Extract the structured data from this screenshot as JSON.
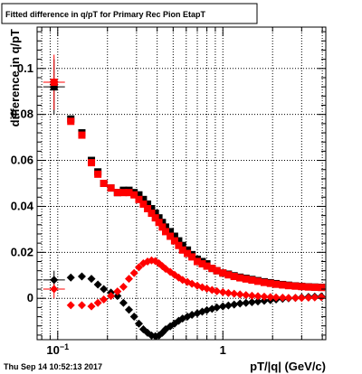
{
  "page": {
    "timestamp": "Thu Sep 14 10:52:13 2017"
  },
  "chart_data": {
    "type": "scatter",
    "title": "Fitted difference in q/pT for Primary Rec Pion EtapT",
    "xlabel": "pT/|q| (GeV/c)",
    "ylabel": "difference in q/pT",
    "xscale": "log",
    "xlim": [
      0.075,
      4.2
    ],
    "ylim": [
      -0.018,
      0.118
    ],
    "grid": true,
    "x_ticks": [
      {
        "label": "10",
        "sup": "−1",
        "value": 0.1
      },
      {
        "label": "1",
        "value": 1.0
      }
    ],
    "y_ticks": [
      {
        "label": "0",
        "value": 0
      },
      {
        "label": "0.02",
        "value": 0.02
      },
      {
        "label": "0.04",
        "value": 0.04
      },
      {
        "label": "0.06",
        "value": 0.06
      },
      {
        "label": "0.08",
        "value": 0.08
      },
      {
        "label": "0.1",
        "value": 0.1
      }
    ],
    "series": [
      {
        "color": "#000000",
        "marker": "square",
        "points": [
          [
            0.095,
            0.092
          ],
          [
            0.12,
            0.078
          ],
          [
            0.14,
            0.072
          ],
          [
            0.16,
            0.06
          ],
          [
            0.175,
            0.055
          ],
          [
            0.19,
            0.05
          ],
          [
            0.21,
            0.048
          ],
          [
            0.23,
            0.046
          ],
          [
            0.25,
            0.047
          ],
          [
            0.27,
            0.047
          ],
          [
            0.29,
            0.046
          ],
          [
            0.31,
            0.045
          ],
          [
            0.33,
            0.043
          ],
          [
            0.35,
            0.041
          ],
          [
            0.37,
            0.039
          ],
          [
            0.39,
            0.037
          ],
          [
            0.41,
            0.035
          ],
          [
            0.43,
            0.033
          ],
          [
            0.45,
            0.031
          ],
          [
            0.48,
            0.029
          ],
          [
            0.51,
            0.027
          ],
          [
            0.54,
            0.025
          ],
          [
            0.57,
            0.023
          ],
          [
            0.61,
            0.021
          ],
          [
            0.65,
            0.019
          ],
          [
            0.7,
            0.017
          ],
          [
            0.75,
            0.016
          ],
          [
            0.8,
            0.015
          ],
          [
            0.86,
            0.013
          ],
          [
            0.92,
            0.012
          ],
          [
            1.0,
            0.011
          ],
          [
            1.08,
            0.0105
          ],
          [
            1.17,
            0.0098
          ],
          [
            1.27,
            0.0092
          ],
          [
            1.38,
            0.0087
          ],
          [
            1.5,
            0.0082
          ],
          [
            1.63,
            0.0077
          ],
          [
            1.78,
            0.0072
          ],
          [
            1.94,
            0.0068
          ],
          [
            2.1,
            0.0064
          ],
          [
            2.3,
            0.006
          ],
          [
            2.5,
            0.0057
          ],
          [
            2.75,
            0.0054
          ],
          [
            3.0,
            0.0052
          ],
          [
            3.3,
            0.005
          ],
          [
            3.6,
            0.0049
          ],
          [
            3.95,
            0.0048
          ]
        ]
      },
      {
        "color": "#ff0000",
        "marker": "square",
        "points": [
          [
            0.095,
            0.094
          ],
          [
            0.12,
            0.077
          ],
          [
            0.14,
            0.071
          ],
          [
            0.16,
            0.059
          ],
          [
            0.175,
            0.054
          ],
          [
            0.19,
            0.05
          ],
          [
            0.21,
            0.048
          ],
          [
            0.23,
            0.046
          ],
          [
            0.25,
            0.046
          ],
          [
            0.27,
            0.046
          ],
          [
            0.29,
            0.045
          ],
          [
            0.31,
            0.043
          ],
          [
            0.33,
            0.041
          ],
          [
            0.35,
            0.039
          ],
          [
            0.37,
            0.037
          ],
          [
            0.39,
            0.035
          ],
          [
            0.41,
            0.033
          ],
          [
            0.43,
            0.031
          ],
          [
            0.45,
            0.029
          ],
          [
            0.48,
            0.027
          ],
          [
            0.51,
            0.025
          ],
          [
            0.54,
            0.023
          ],
          [
            0.57,
            0.021
          ],
          [
            0.61,
            0.0195
          ],
          [
            0.65,
            0.018
          ],
          [
            0.7,
            0.016
          ],
          [
            0.75,
            0.015
          ],
          [
            0.8,
            0.014
          ],
          [
            0.86,
            0.013
          ],
          [
            0.92,
            0.012
          ],
          [
            1.0,
            0.011
          ],
          [
            1.08,
            0.0102
          ],
          [
            1.17,
            0.0095
          ],
          [
            1.27,
            0.0089
          ],
          [
            1.38,
            0.0084
          ],
          [
            1.5,
            0.0079
          ],
          [
            1.63,
            0.0074
          ],
          [
            1.78,
            0.0069
          ],
          [
            1.94,
            0.0065
          ],
          [
            2.1,
            0.0061
          ],
          [
            2.3,
            0.0058
          ],
          [
            2.5,
            0.0055
          ],
          [
            2.75,
            0.0053
          ],
          [
            3.0,
            0.0051
          ],
          [
            3.3,
            0.0049
          ],
          [
            3.6,
            0.0048
          ],
          [
            3.95,
            0.0047
          ]
        ]
      },
      {
        "color": "#000000",
        "marker": "diamond",
        "points": [
          [
            0.095,
            0.008
          ],
          [
            0.12,
            0.009
          ],
          [
            0.14,
            0.0095
          ],
          [
            0.16,
            0.0085
          ],
          [
            0.175,
            0.006
          ],
          [
            0.19,
            0.004
          ],
          [
            0.21,
            0.0025
          ],
          [
            0.23,
            0.001
          ],
          [
            0.25,
            -0.002
          ],
          [
            0.27,
            -0.005
          ],
          [
            0.29,
            -0.008
          ],
          [
            0.31,
            -0.011
          ],
          [
            0.33,
            -0.0135
          ],
          [
            0.35,
            -0.015
          ],
          [
            0.37,
            -0.0162
          ],
          [
            0.39,
            -0.0165
          ],
          [
            0.41,
            -0.0162
          ],
          [
            0.43,
            -0.015
          ],
          [
            0.45,
            -0.0135
          ],
          [
            0.48,
            -0.0122
          ],
          [
            0.51,
            -0.011
          ],
          [
            0.54,
            -0.0098
          ],
          [
            0.57,
            -0.0088
          ],
          [
            0.61,
            -0.008
          ],
          [
            0.65,
            -0.0072
          ],
          [
            0.7,
            -0.0065
          ],
          [
            0.75,
            -0.0058
          ],
          [
            0.8,
            -0.0052
          ],
          [
            0.86,
            -0.0046
          ],
          [
            0.92,
            -0.004
          ],
          [
            1.0,
            -0.0035
          ],
          [
            1.08,
            -0.0031
          ],
          [
            1.17,
            -0.0027
          ],
          [
            1.27,
            -0.0023
          ],
          [
            1.38,
            -0.002
          ],
          [
            1.5,
            -0.0017
          ],
          [
            1.63,
            -0.0014
          ],
          [
            1.78,
            -0.0011
          ],
          [
            1.94,
            -0.0008
          ],
          [
            2.1,
            -0.0005
          ],
          [
            2.3,
            -0.0002
          ],
          [
            2.5,
            0.0
          ],
          [
            2.75,
            0.0002
          ],
          [
            3.0,
            0.0004
          ],
          [
            3.3,
            0.0006
          ],
          [
            3.6,
            0.0007
          ],
          [
            3.95,
            0.0008
          ]
        ]
      },
      {
        "color": "#ff0000",
        "marker": "diamond",
        "points": [
          [
            0.095,
            0.004
          ],
          [
            0.12,
            -0.003
          ],
          [
            0.14,
            -0.003
          ],
          [
            0.16,
            -0.0035
          ],
          [
            0.175,
            -0.002
          ],
          [
            0.19,
            -0.0005
          ],
          [
            0.21,
            0.001
          ],
          [
            0.23,
            0.003
          ],
          [
            0.25,
            0.005
          ],
          [
            0.27,
            0.0085
          ],
          [
            0.29,
            0.011
          ],
          [
            0.31,
            0.0135
          ],
          [
            0.33,
            0.0152
          ],
          [
            0.35,
            0.016
          ],
          [
            0.37,
            0.0165
          ],
          [
            0.39,
            0.0162
          ],
          [
            0.41,
            0.0152
          ],
          [
            0.43,
            0.014
          ],
          [
            0.45,
            0.0128
          ],
          [
            0.48,
            0.0115
          ],
          [
            0.51,
            0.0102
          ],
          [
            0.54,
            0.009
          ],
          [
            0.57,
            0.008
          ],
          [
            0.61,
            0.0071
          ],
          [
            0.65,
            0.0063
          ],
          [
            0.7,
            0.0055
          ],
          [
            0.75,
            0.0048
          ],
          [
            0.8,
            0.0042
          ],
          [
            0.86,
            0.0036
          ],
          [
            0.92,
            0.0031
          ],
          [
            1.0,
            0.0027
          ],
          [
            1.08,
            0.0023
          ],
          [
            1.17,
            0.002
          ],
          [
            1.27,
            0.0017
          ],
          [
            1.38,
            0.0014
          ],
          [
            1.5,
            0.0011
          ],
          [
            1.63,
            0.0009
          ],
          [
            1.78,
            0.0007
          ],
          [
            1.94,
            0.0005
          ],
          [
            2.1,
            0.0004
          ],
          [
            2.3,
            0.0003
          ],
          [
            2.5,
            0.0002
          ],
          [
            2.75,
            0.0002
          ],
          [
            3.0,
            0.0002
          ],
          [
            3.3,
            0.0003
          ],
          [
            3.6,
            0.0004
          ],
          [
            3.95,
            0.0005
          ]
        ]
      }
    ],
    "error_bars": [
      {
        "series": 0,
        "x": 0.095,
        "y": 0.092,
        "yerr": 0.012
      },
      {
        "series": 1,
        "x": 0.095,
        "y": 0.094,
        "yerr": 0.012
      },
      {
        "series": 2,
        "x": 0.095,
        "y": 0.008,
        "yerr": 0.004
      },
      {
        "series": 3,
        "x": 0.095,
        "y": 0.004,
        "yerr": 0.004
      }
    ]
  }
}
